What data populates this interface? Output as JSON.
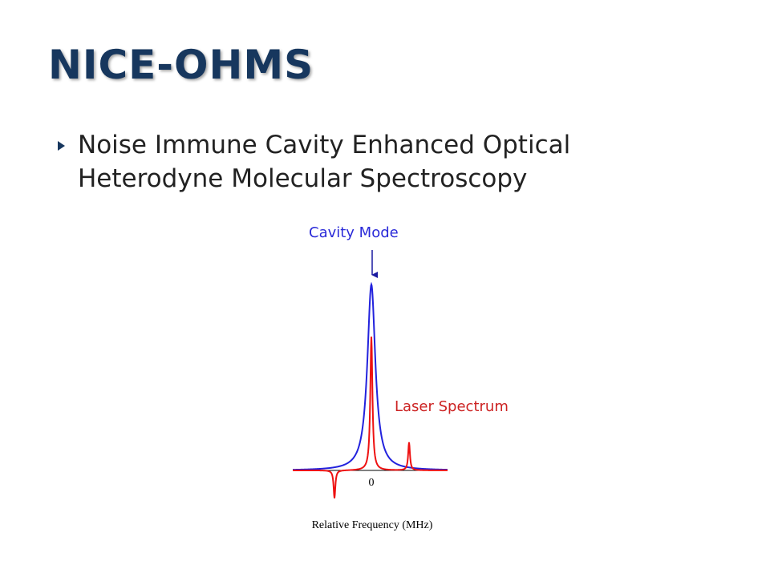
{
  "title": "NICE-OHMS",
  "bullets": [
    "Noise Immune Cavity Enhanced Optical Heterodyne Molecular Spectroscopy"
  ],
  "figure": {
    "cavity_label": "Cavity Mode",
    "laser_label": "Laser Spectrum",
    "zero_label": "0",
    "x_axis_label": "Relative Frequency (MHz)"
  }
}
